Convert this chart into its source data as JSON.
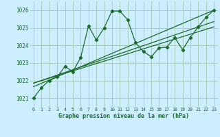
{
  "title": "Graphe pression niveau de la mer (hPa)",
  "background_color": "#cceeff",
  "grid_color": "#aaccbb",
  "line_color": "#1a6b2a",
  "xlim": [
    -0.5,
    23.5
  ],
  "ylim": [
    1020.5,
    1026.5
  ],
  "yticks": [
    1021,
    1022,
    1023,
    1024,
    1025,
    1026
  ],
  "xticks": [
    0,
    1,
    2,
    3,
    4,
    5,
    6,
    7,
    8,
    9,
    10,
    11,
    12,
    13,
    14,
    15,
    16,
    17,
    18,
    19,
    20,
    21,
    22,
    23
  ],
  "main_line": [
    [
      0,
      1021.0
    ],
    [
      1,
      1021.6
    ],
    [
      2,
      1022.0
    ],
    [
      3,
      1022.2
    ],
    [
      4,
      1022.8
    ],
    [
      5,
      1022.5
    ],
    [
      6,
      1023.3
    ],
    [
      7,
      1025.1
    ],
    [
      8,
      1024.3
    ],
    [
      9,
      1025.0
    ],
    [
      10,
      1025.95
    ],
    [
      11,
      1025.95
    ],
    [
      12,
      1025.45
    ],
    [
      13,
      1024.15
    ],
    [
      14,
      1023.65
    ],
    [
      15,
      1023.35
    ],
    [
      16,
      1023.85
    ],
    [
      17,
      1023.9
    ],
    [
      18,
      1024.45
    ],
    [
      19,
      1023.75
    ],
    [
      20,
      1024.45
    ],
    [
      21,
      1025.05
    ],
    [
      22,
      1025.6
    ],
    [
      23,
      1026.0
    ]
  ],
  "trend_line1": [
    [
      0,
      1021.85
    ],
    [
      23,
      1025.35
    ]
  ],
  "trend_line2": [
    [
      0,
      1021.85
    ],
    [
      23,
      1025.05
    ]
  ],
  "trend_line3": [
    [
      0,
      1021.65
    ],
    [
      23,
      1026.0
    ]
  ]
}
